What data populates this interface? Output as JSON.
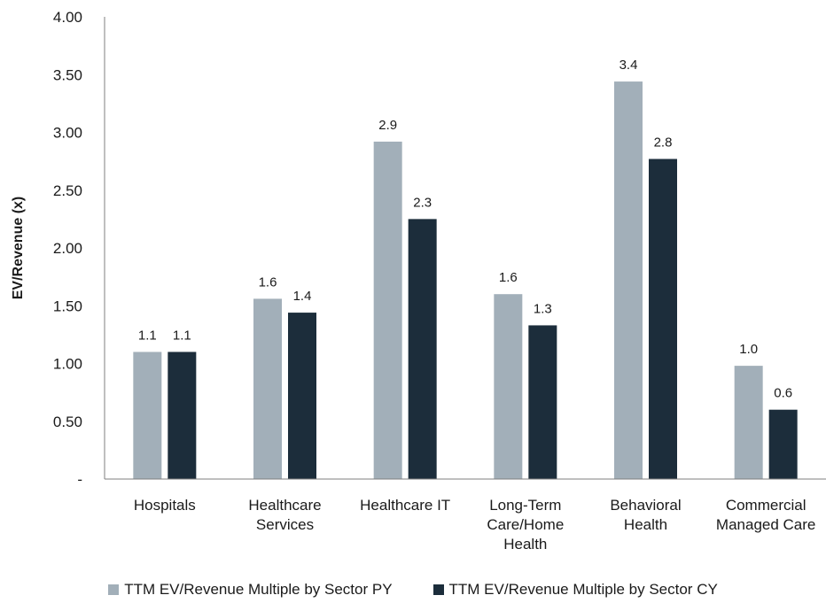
{
  "chart_data": {
    "type": "bar",
    "ylabel": "EV/Revenue (x)",
    "ylim": [
      0,
      4.0
    ],
    "yticks": [
      "-",
      "0.50",
      "1.00",
      "1.50",
      "2.00",
      "2.50",
      "3.00",
      "3.50",
      "4.00"
    ],
    "categories": [
      [
        "Hospitals"
      ],
      [
        "Healthcare",
        "Services"
      ],
      [
        "Healthcare IT"
      ],
      [
        "Long-Term",
        "Care/Home",
        "Health"
      ],
      [
        "Behavioral",
        "Health"
      ],
      [
        "Commercial",
        "Managed Care"
      ]
    ],
    "series": [
      {
        "name": "TTM EV/Revenue Multiple by Sector PY",
        "values": [
          1.1,
          1.56,
          2.92,
          1.6,
          3.44,
          0.98
        ],
        "labels": [
          "1.1",
          "1.6",
          "2.9",
          "1.6",
          "3.4",
          "1.0"
        ],
        "color": "#a2afb9"
      },
      {
        "name": "TTM EV/Revenue Multiple by Sector CY",
        "values": [
          1.1,
          1.44,
          2.25,
          1.33,
          2.77,
          0.6
        ],
        "labels": [
          "1.1",
          "1.4",
          "2.3",
          "1.3",
          "2.8",
          "0.6"
        ],
        "color": "#1c2d3b"
      }
    ],
    "grid": false,
    "legend_position": "bottom"
  }
}
